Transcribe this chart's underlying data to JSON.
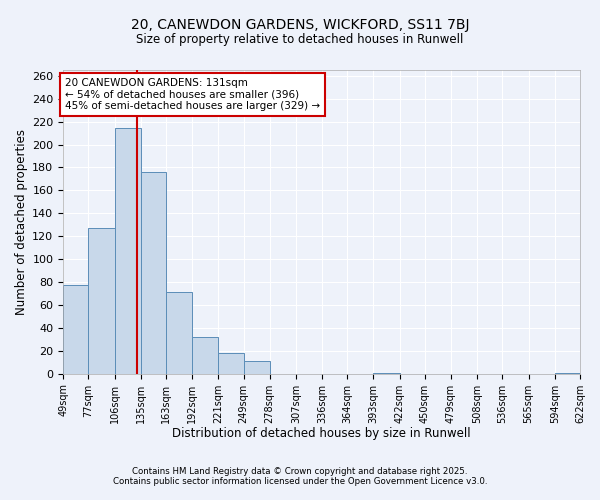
{
  "title1": "20, CANEWDON GARDENS, WICKFORD, SS11 7BJ",
  "title2": "Size of property relative to detached houses in Runwell",
  "xlabel": "Distribution of detached houses by size in Runwell",
  "ylabel": "Number of detached properties",
  "bin_edges": [
    49,
    77,
    106,
    135,
    163,
    192,
    221,
    249,
    278,
    307,
    336,
    364,
    393,
    422,
    450,
    479,
    508,
    536,
    565,
    594,
    622
  ],
  "bin_labels": [
    "49sqm",
    "77sqm",
    "106sqm",
    "135sqm",
    "163sqm",
    "192sqm",
    "221sqm",
    "249sqm",
    "278sqm",
    "307sqm",
    "336sqm",
    "364sqm",
    "393sqm",
    "422sqm",
    "450sqm",
    "479sqm",
    "508sqm",
    "536sqm",
    "565sqm",
    "594sqm",
    "622sqm"
  ],
  "counts": [
    77,
    127,
    214,
    176,
    71,
    32,
    18,
    11,
    0,
    0,
    0,
    0,
    1,
    0,
    0,
    0,
    0,
    0,
    0,
    1
  ],
  "bar_color": "#c8d8ea",
  "bar_edge_color": "#5b8db8",
  "vline_x": 131,
  "vline_color": "#cc0000",
  "annotation_line1": "20 CANEWDON GARDENS: 131sqm",
  "annotation_line2": "← 54% of detached houses are smaller (396)",
  "annotation_line3": "45% of semi-detached houses are larger (329) →",
  "annotation_box_color": "white",
  "annotation_box_edge": "#cc0000",
  "ylim": [
    0,
    265
  ],
  "yticks": [
    0,
    20,
    40,
    60,
    80,
    100,
    120,
    140,
    160,
    180,
    200,
    220,
    240,
    260
  ],
  "background_color": "#eef2fa",
  "grid_color": "white",
  "footer1": "Contains HM Land Registry data © Crown copyright and database right 2025.",
  "footer2": "Contains public sector information licensed under the Open Government Licence v3.0."
}
